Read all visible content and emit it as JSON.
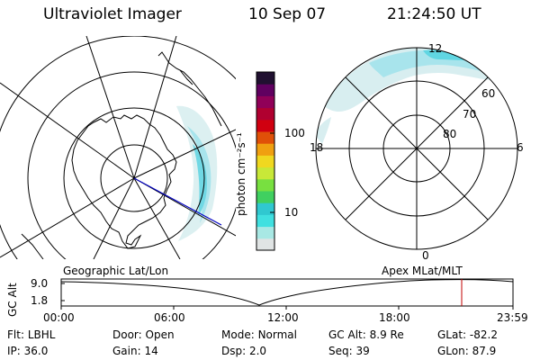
{
  "header": {
    "instrument": "Ultraviolet Imager",
    "date": "10 Sep 07",
    "time": "21:24:50 UT"
  },
  "colorbar": {
    "unit_label": "photon cm⁻²s⁻¹",
    "ticks": [
      "100",
      "10"
    ],
    "colors": [
      "#e0e4e4",
      "#a8e8e4",
      "#40e0e0",
      "#30c8d0",
      "#40d060",
      "#78e040",
      "#c8e838",
      "#f0d820",
      "#f0a010",
      "#e05008",
      "#d00010",
      "#b00030",
      "#900058",
      "#600060",
      "#201030"
    ]
  },
  "left_map": {
    "caption": "Geographic Lat/Lon",
    "overlay_color": "#0000c0"
  },
  "right_map": {
    "caption": "Apex MLat/MLT",
    "lat_labels": [
      "60",
      "70",
      "80"
    ],
    "mlt_labels": {
      "top": "12",
      "left": "18",
      "right": "6",
      "bottom": "0"
    }
  },
  "altitude_plot": {
    "ylabel": "GC Alt",
    "yticks": [
      "9.0",
      "1.8"
    ],
    "xticks": [
      "00:00",
      "06:00",
      "12:00",
      "18:00",
      "23:59"
    ],
    "marker_color": "#c00000"
  },
  "status": {
    "row1": [
      {
        "label": "Flt:",
        "value": "LBHL"
      },
      {
        "label": "Door:",
        "value": "Open"
      },
      {
        "label": "Mode:",
        "value": "Normal"
      },
      {
        "label": "GC Alt:",
        "value": "8.9 Re"
      },
      {
        "label": "GLat:",
        "value": "-82.2"
      }
    ],
    "row2": [
      {
        "label": "IP:",
        "value": "36.0"
      },
      {
        "label": "Gain:",
        "value": "14"
      },
      {
        "label": "Dsp:",
        "value": "2.0"
      },
      {
        "label": "Seq:",
        "value": "39"
      },
      {
        "label": "GLon:",
        "value": "87.9"
      }
    ]
  }
}
